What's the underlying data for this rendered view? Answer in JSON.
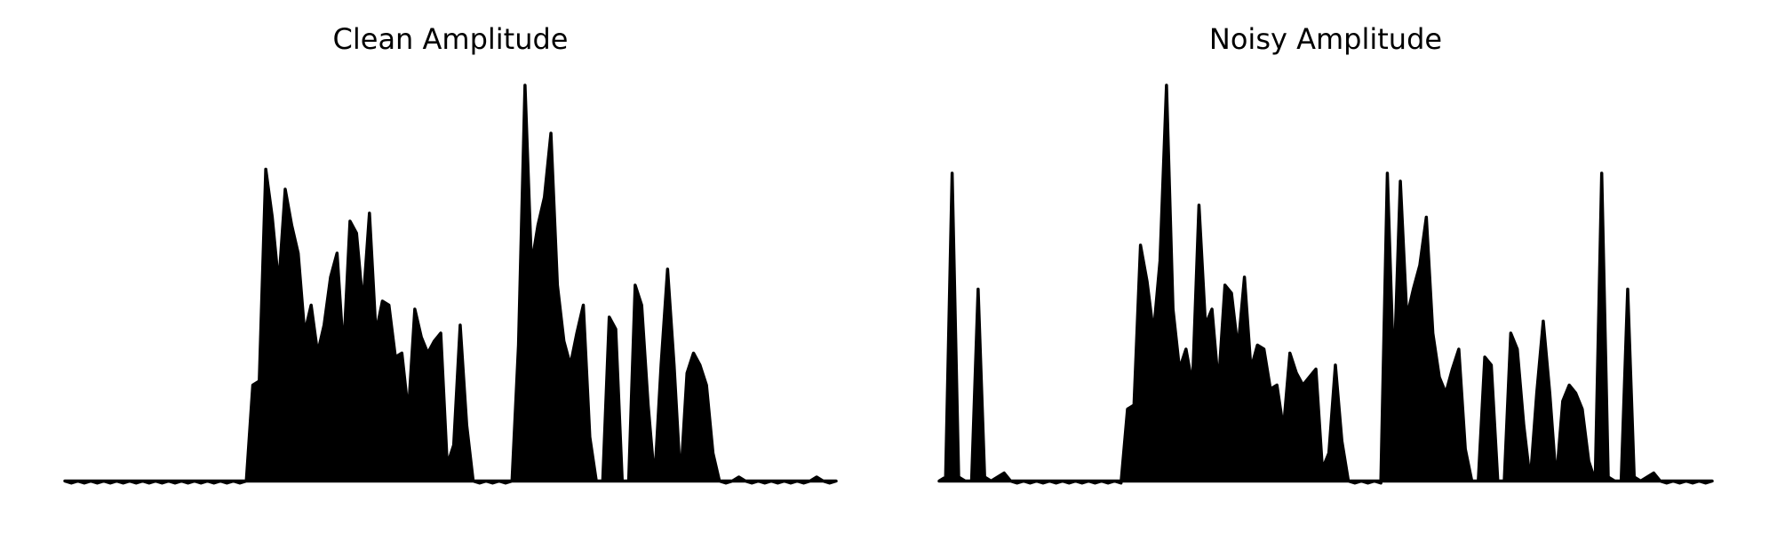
{
  "chart_data": [
    {
      "type": "area",
      "title": "Clean Amplitude",
      "color": "#000000",
      "ylim": [
        0,
        1
      ],
      "values": [
        0.01,
        0.005,
        0.01,
        0.005,
        0.01,
        0.005,
        0.01,
        0.005,
        0.01,
        0.005,
        0.01,
        0.005,
        0.01,
        0.005,
        0.01,
        0.005,
        0.01,
        0.005,
        0.01,
        0.005,
        0.01,
        0.005,
        0.01,
        0.005,
        0.01,
        0.005,
        0.01,
        0.005,
        0.01,
        0.25,
        0.26,
        0.79,
        0.67,
        0.5,
        0.74,
        0.65,
        0.58,
        0.38,
        0.45,
        0.33,
        0.4,
        0.52,
        0.58,
        0.33,
        0.66,
        0.63,
        0.45,
        0.68,
        0.38,
        0.46,
        0.45,
        0.32,
        0.33,
        0.18,
        0.44,
        0.37,
        0.33,
        0.36,
        0.38,
        0.05,
        0.1,
        0.4,
        0.15,
        0.01,
        0.005,
        0.01,
        0.005,
        0.01,
        0.005,
        0.01,
        0.35,
        1.0,
        0.55,
        0.65,
        0.72,
        0.88,
        0.5,
        0.36,
        0.3,
        0.38,
        0.45,
        0.12,
        0.01,
        0.01,
        0.42,
        0.39,
        0.01,
        0.01,
        0.5,
        0.45,
        0.2,
        0.01,
        0.3,
        0.54,
        0.3,
        0.01,
        0.28,
        0.33,
        0.3,
        0.25,
        0.08,
        0.01,
        0.005,
        0.01,
        0.02,
        0.01,
        0.005,
        0.01,
        0.005,
        0.01,
        0.005,
        0.01,
        0.005,
        0.01,
        0.005,
        0.01,
        0.02,
        0.01,
        0.005,
        0.01
      ]
    },
    {
      "type": "area",
      "title": "Noisy Amplitude",
      "color": "#000000",
      "ylim": [
        0,
        1
      ],
      "values": [
        0.01,
        0.02,
        0.78,
        0.02,
        0.01,
        0.01,
        0.49,
        0.02,
        0.01,
        0.02,
        0.03,
        0.01,
        0.005,
        0.01,
        0.005,
        0.01,
        0.005,
        0.01,
        0.005,
        0.01,
        0.005,
        0.01,
        0.005,
        0.01,
        0.005,
        0.01,
        0.005,
        0.01,
        0.005,
        0.19,
        0.2,
        0.6,
        0.51,
        0.38,
        0.56,
        1.0,
        0.44,
        0.29,
        0.34,
        0.25,
        0.7,
        0.4,
        0.44,
        0.25,
        0.5,
        0.48,
        0.34,
        0.52,
        0.29,
        0.35,
        0.34,
        0.24,
        0.25,
        0.14,
        0.33,
        0.28,
        0.25,
        0.27,
        0.29,
        0.04,
        0.08,
        0.3,
        0.11,
        0.01,
        0.005,
        0.01,
        0.005,
        0.01,
        0.005,
        0.78,
        0.27,
        0.76,
        0.42,
        0.49,
        0.55,
        0.67,
        0.38,
        0.27,
        0.23,
        0.29,
        0.34,
        0.09,
        0.01,
        0.01,
        0.32,
        0.3,
        0.01,
        0.01,
        0.38,
        0.34,
        0.15,
        0.01,
        0.23,
        0.41,
        0.23,
        0.01,
        0.21,
        0.25,
        0.23,
        0.19,
        0.06,
        0.01,
        0.78,
        0.02,
        0.01,
        0.01,
        0.49,
        0.02,
        0.01,
        0.02,
        0.03,
        0.01,
        0.005,
        0.01,
        0.005,
        0.01,
        0.005,
        0.01,
        0.005,
        0.01
      ]
    }
  ]
}
